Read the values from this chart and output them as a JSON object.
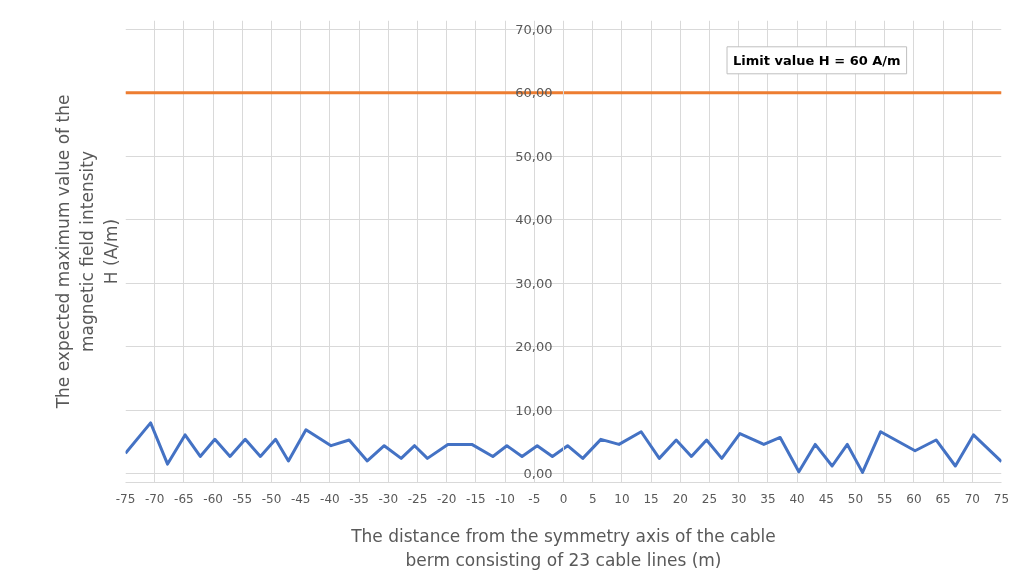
{
  "chart_data": {
    "type": "line",
    "xlabel": "The distance from the symmetry axis of the cable\nberm consisting of 23 cable lines (m)",
    "ylabel": "The expected maximum value of the\nmagnetic field intensity\nH (A/m)",
    "xlim": [
      -75,
      75
    ],
    "xticks": [
      -75,
      -70,
      -65,
      -60,
      -55,
      -50,
      -45,
      -40,
      -35,
      -30,
      -25,
      -20,
      -15,
      -10,
      -5,
      0,
      5,
      10,
      15,
      20,
      25,
      30,
      35,
      40,
      45,
      50,
      55,
      60,
      65,
      70,
      75
    ],
    "ylim": [
      0,
      70
    ],
    "yticks": [
      {
        "value": 0,
        "label": "0,00"
      },
      {
        "value": 10,
        "label": "10,00"
      },
      {
        "value": 20,
        "label": "20,00"
      },
      {
        "value": 30,
        "label": "30,00"
      },
      {
        "value": 40,
        "label": "40,00"
      },
      {
        "value": 50,
        "label": "50,00"
      },
      {
        "value": 60,
        "label": "60,00"
      },
      {
        "value": 70,
        "label": "70,00"
      }
    ],
    "grid": true,
    "marker": "none",
    "line_style": "solid",
    "series": [
      {
        "color": "#4472c4",
        "x": [
          -75,
          -70.7,
          -67.8,
          -64.8,
          -62.2,
          -59.7,
          -57.1,
          -54.5,
          -51.9,
          -49.3,
          -47.1,
          -44.1,
          -39.8,
          -36.7,
          -33.6,
          -30.7,
          -27.8,
          -25.5,
          -23.3,
          -19.8,
          -15.7,
          -12.1,
          -9.7,
          -7.1,
          -4.5,
          -1.9,
          0.7,
          3.3,
          6.4,
          9.5,
          13.3,
          16.4,
          19.3,
          21.9,
          24.5,
          27.1,
          30.2,
          34.3,
          37.1,
          40.3,
          43.1,
          46.0,
          48.6,
          51.2,
          54.3,
          60.2,
          63.8,
          67.1,
          70.2,
          75
        ],
        "values": [
          3.2,
          8.0,
          1.5,
          6.1,
          2.7,
          5.4,
          2.7,
          5.4,
          2.7,
          5.4,
          2.0,
          6.9,
          4.4,
          5.3,
          2.0,
          4.4,
          2.4,
          4.4,
          2.4,
          4.6,
          4.6,
          2.7,
          4.4,
          2.7,
          4.4,
          2.7,
          4.4,
          2.4,
          5.4,
          4.6,
          6.6,
          2.4,
          5.3,
          2.7,
          5.3,
          2.4,
          6.3,
          4.6,
          5.7,
          0.3,
          4.6,
          1.2,
          4.6,
          0.2,
          6.6,
          3.6,
          5.3,
          1.2,
          6.1,
          1.9
        ]
      }
    ],
    "ref_lines": [
      {
        "axis": "y",
        "value": 60,
        "label": "Limit value H = 60 A/m",
        "color": "#ed7d31",
        "line_style": "solid"
      }
    ]
  }
}
